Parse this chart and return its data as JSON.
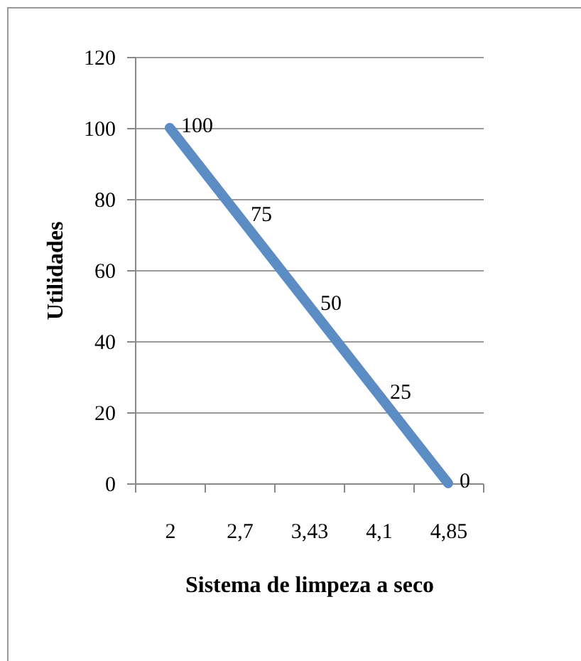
{
  "chart_data": {
    "type": "line",
    "xlabel": "Sistema de limpeza a seco",
    "ylabel": "Utilidades",
    "categories": [
      "2",
      "2,7",
      "3,43",
      "4,1",
      "4,85"
    ],
    "series": [
      {
        "color": "#5b8cc4",
        "values": [
          100,
          75,
          50,
          25,
          0
        ]
      }
    ],
    "ylim": [
      0,
      120
    ],
    "yticks": [
      0,
      20,
      40,
      60,
      80,
      100,
      120
    ],
    "grid": "y",
    "data_labels": true,
    "legend": false,
    "marker": "none",
    "line_style": "solid"
  }
}
